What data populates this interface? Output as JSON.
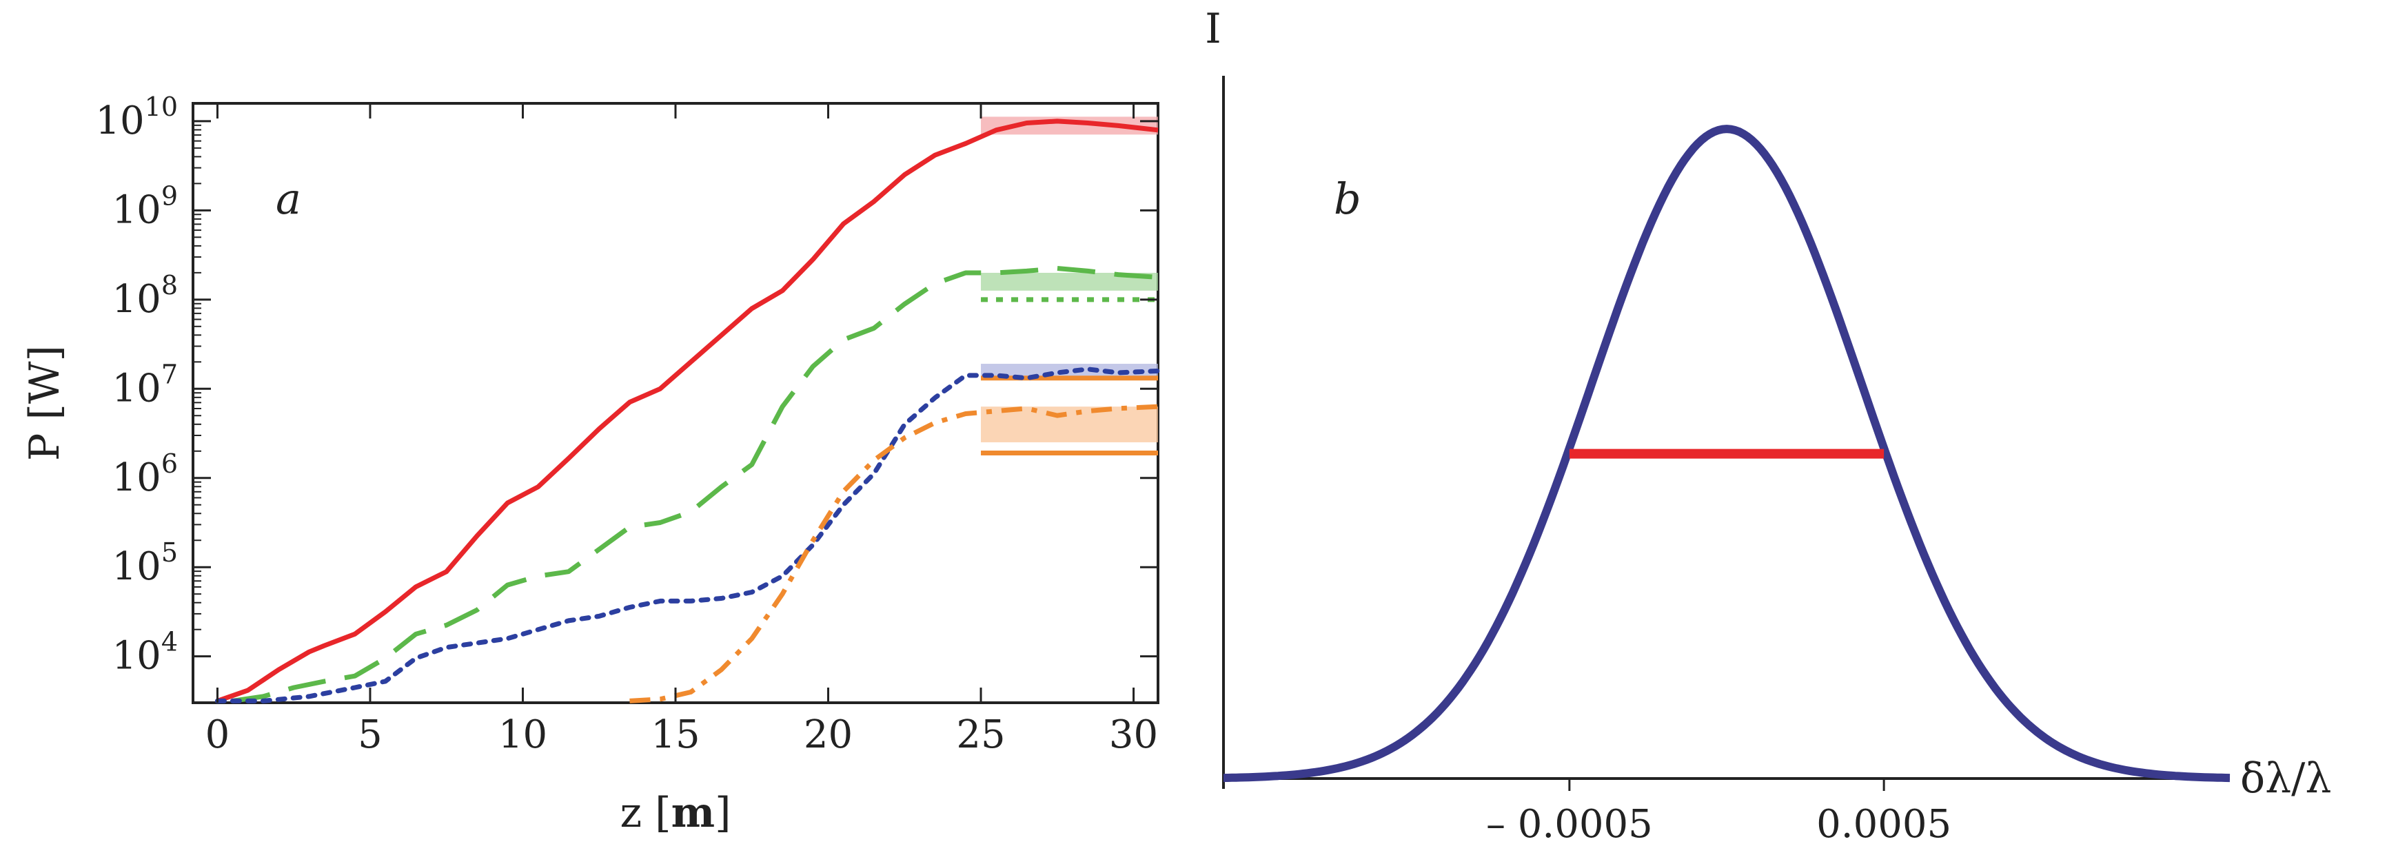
{
  "chart_data": [
    {
      "panel": "a",
      "type": "line",
      "label": "a",
      "xlabel": "z [",
      "xlabel_bold": "m",
      "xlabel_end": "]",
      "ylabel": "P [W]",
      "xlim": [
        -0.8,
        30.8
      ],
      "ylim_log10": [
        3.48,
        10.2
      ],
      "yscale": "log",
      "xticks": [
        0,
        5,
        10,
        15,
        20,
        25,
        30
      ],
      "xtick_labels": [
        "0",
        "5",
        "10",
        "15",
        "20",
        "25",
        "30"
      ],
      "yticks": [
        {
          "exp": 4,
          "label_base": "10",
          "label_exp": "4"
        },
        {
          "exp": 5,
          "label_base": "10",
          "label_exp": "5"
        },
        {
          "exp": 6,
          "label_base": "10",
          "label_exp": "6"
        },
        {
          "exp": 7,
          "label_base": "10",
          "label_exp": "7"
        },
        {
          "exp": 8,
          "label_base": "10",
          "label_exp": "8"
        },
        {
          "exp": 9,
          "label_base": "10",
          "label_exp": "9"
        },
        {
          "exp": 10,
          "label_base": "10",
          "label_exp": "10"
        }
      ],
      "series": [
        {
          "name": "red-solid",
          "color": "#e8262a",
          "style": "solid",
          "x": [
            0,
            1,
            2,
            3,
            3.5,
            4.5,
            5.5,
            6.5,
            7.5,
            8.5,
            9.5,
            10.5,
            11.5,
            12.5,
            13.5,
            14.5,
            15.5,
            16.5,
            17.5,
            18.5,
            19.5,
            20.5,
            21.5,
            22.5,
            23.5,
            24.5,
            25.5,
            26.5,
            27.5,
            28.5,
            29.5,
            30.8
          ],
          "log10_y": [
            3.5,
            3.62,
            3.85,
            4.05,
            4.12,
            4.25,
            4.5,
            4.78,
            4.95,
            5.35,
            5.72,
            5.9,
            6.22,
            6.55,
            6.85,
            7.0,
            7.3,
            7.6,
            7.9,
            8.1,
            8.45,
            8.85,
            9.1,
            9.4,
            9.62,
            9.75,
            9.9,
            9.98,
            10.0,
            9.98,
            9.95,
            9.9
          ]
        },
        {
          "name": "green-dashed",
          "color": "#5cb84a",
          "style": "dashed",
          "x": [
            0.5,
            1.5,
            2.5,
            3.5,
            4.5,
            5.5,
            6.5,
            7.5,
            8.5,
            9.5,
            10.5,
            11.5,
            12.5,
            13.5,
            14.5,
            15.5,
            16.5,
            17.5,
            18.5,
            19.5,
            20.5,
            21.5,
            22.5,
            23.5,
            24.5,
            25.5,
            26.5,
            27.5,
            28.5,
            29.5,
            30.8
          ],
          "log10_y": [
            3.5,
            3.55,
            3.65,
            3.72,
            3.78,
            3.98,
            4.25,
            4.35,
            4.52,
            4.8,
            4.9,
            4.95,
            5.2,
            5.45,
            5.5,
            5.62,
            5.9,
            6.15,
            6.8,
            7.25,
            7.55,
            7.68,
            7.95,
            8.18,
            8.3,
            8.3,
            8.32,
            8.35,
            8.32,
            8.28,
            8.25
          ]
        },
        {
          "name": "blue-dotted",
          "color": "#2c3fa0",
          "style": "dotted",
          "x": [
            0,
            1.5,
            3,
            4.5,
            5.5,
            6.5,
            7.5,
            8.5,
            9.5,
            10.5,
            11.5,
            12.5,
            13.5,
            14.5,
            15.5,
            16.5,
            17.5,
            18.5,
            19.5,
            20.5,
            21.5,
            22.5,
            23.5,
            24.5,
            25.5,
            26.5,
            27.5,
            28.5,
            29.5,
            30.8
          ],
          "log10_y": [
            3.5,
            3.5,
            3.55,
            3.65,
            3.72,
            3.98,
            4.1,
            4.15,
            4.2,
            4.3,
            4.4,
            4.45,
            4.55,
            4.62,
            4.62,
            4.65,
            4.72,
            4.9,
            5.25,
            5.7,
            6.05,
            6.6,
            6.9,
            7.15,
            7.15,
            7.12,
            7.18,
            7.22,
            7.18,
            7.2
          ]
        },
        {
          "name": "orange-dashdot",
          "color": "#f08a2e",
          "style": "dashdot",
          "x": [
            13.5,
            14.5,
            15.5,
            16.5,
            17.5,
            18.5,
            19.5,
            20.5,
            21.5,
            22.5,
            23.5,
            24.5,
            25.5,
            26.5,
            27.5,
            28.5,
            29.5,
            30.8
          ],
          "log10_y": [
            3.5,
            3.52,
            3.6,
            3.85,
            4.2,
            4.7,
            5.3,
            5.85,
            6.2,
            6.45,
            6.62,
            6.72,
            6.75,
            6.78,
            6.7,
            6.75,
            6.78,
            6.8
          ]
        }
      ],
      "bands": [
        {
          "color": "#f4a7a9",
          "x": [
            25,
            30.8
          ],
          "log10_y": [
            9.85,
            10.05
          ]
        },
        {
          "color": "#a8d8a0",
          "x": [
            25,
            30.8
          ],
          "log10_y": [
            8.1,
            8.3
          ]
        },
        {
          "color": "#b0b5e0",
          "x": [
            25,
            30.8
          ],
          "log10_y": [
            7.1,
            7.28
          ]
        },
        {
          "color": "#f9c79c",
          "x": [
            25,
            30.8
          ],
          "log10_y": [
            6.4,
            6.8
          ]
        }
      ],
      "ref_lines": [
        {
          "color": "#5cb84a",
          "style": "dotted",
          "x": [
            25,
            30.8
          ],
          "log10_y": 8.0
        },
        {
          "color": "#f08a2e",
          "style": "solid",
          "x": [
            25,
            30.8
          ],
          "log10_y": 7.12
        },
        {
          "color": "#f08a2e",
          "style": "solid",
          "x": [
            25,
            30.8
          ],
          "log10_y": 6.28
        }
      ]
    },
    {
      "panel": "b",
      "type": "line",
      "label": "b",
      "ylabel": "I",
      "xlabel": "δλ/λ",
      "xlim": [
        -0.0016,
        0.0016
      ],
      "ylim": [
        0,
        1.05
      ],
      "xticks": [
        -0.0005,
        0.0005
      ],
      "xtick_labels": [
        "– 0.0005",
        "0.0005"
      ],
      "series": [
        {
          "name": "spectrum",
          "color": "#3a3a8c",
          "style": "solid",
          "gaussian": {
            "center": 0.0,
            "sigma": 0.00043,
            "amplitude": 1.0
          }
        }
      ],
      "fwhm_bar": {
        "color": "#e8262a",
        "x": [
          -0.0005,
          0.0005
        ],
        "y": 0.5
      }
    }
  ]
}
